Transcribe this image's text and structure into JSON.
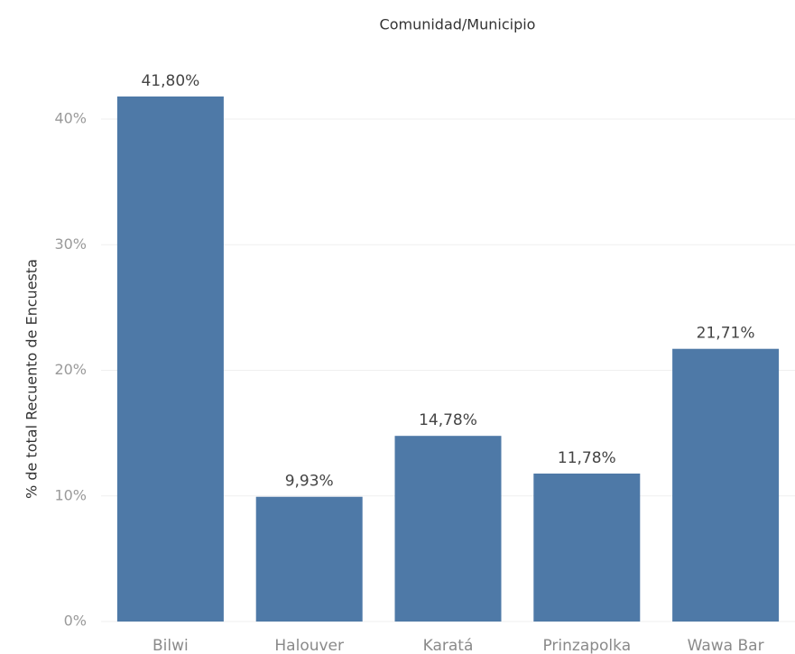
{
  "chart_data": {
    "type": "bar",
    "title": "Comunidad/Municipio",
    "y_label": "% de total Recuento de Encuesta",
    "categories": [
      "Bilwi",
      "Halouver",
      "Karatá",
      "Prinzapolka",
      "Wawa Bar"
    ],
    "values": [
      41.8,
      9.93,
      14.78,
      11.78,
      21.71
    ],
    "value_labels": [
      "41,80%",
      "9,93%",
      "14,78%",
      "11,78%",
      "21,71%"
    ],
    "color": "#4e79a7",
    "ylim": [
      0,
      45
    ],
    "yticks": [
      {
        "value": 0,
        "label": "0%"
      },
      {
        "value": 10,
        "label": "10%"
      },
      {
        "value": 20,
        "label": "20%"
      },
      {
        "value": 30,
        "label": "30%"
      },
      {
        "value": 40,
        "label": "40%"
      }
    ],
    "grid": true
  }
}
